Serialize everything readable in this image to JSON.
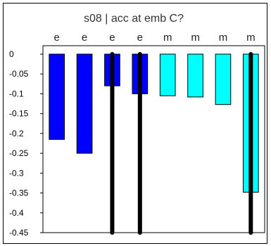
{
  "chart_data": {
    "type": "bar",
    "title": "s08 | acc at emb C?",
    "xlabel": "",
    "ylabel": "",
    "categories": [
      "e",
      "e",
      "e",
      "e",
      "m",
      "m",
      "m",
      "m"
    ],
    "values": [
      -0.215,
      -0.25,
      -0.08,
      -0.1,
      -0.105,
      -0.108,
      -0.127,
      -0.348
    ],
    "bar_colors": [
      "#0000ff",
      "#0000ff",
      "#0000ff",
      "#0000ff",
      "#00ffff",
      "#00ffff",
      "#00ffff",
      "#00ffff"
    ],
    "error_bars": [
      null,
      null,
      [
        -0.45,
        0
      ],
      [
        -0.45,
        0
      ],
      null,
      null,
      null,
      [
        -0.45,
        0
      ]
    ],
    "ylim": [
      -0.45,
      0
    ],
    "yticks": [
      0,
      -0.05,
      -0.1,
      -0.15,
      -0.2,
      -0.25,
      -0.3,
      -0.35,
      -0.4,
      -0.45
    ],
    "ytick_labels": [
      "0",
      "-0.05",
      "-0.1",
      "-0.15",
      "-0.2",
      "-0.25",
      "-0.3",
      "-0.35",
      "-0.4",
      "-0.45"
    ],
    "grid": false,
    "legend": "none"
  }
}
